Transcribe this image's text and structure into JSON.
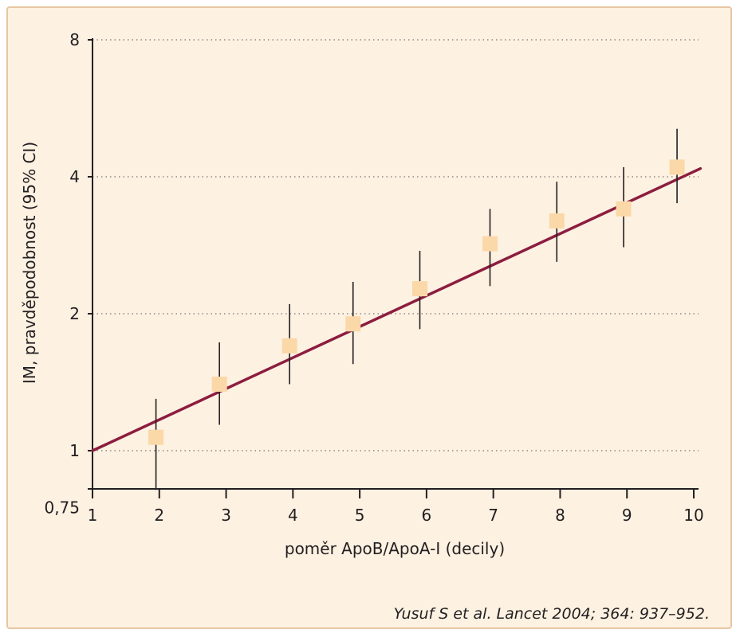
{
  "chart_data": {
    "type": "scatter",
    "xlabel": "poměr ApoB/ApoA-I (decily)",
    "ylabel": "IM, pravděpodobnost (95% CI)",
    "x_ticks": [
      "1",
      "2",
      "3",
      "4",
      "5",
      "6",
      "7",
      "8",
      "9",
      "10"
    ],
    "y_ticks": [
      {
        "value": 0.75,
        "label": "0,75"
      },
      {
        "value": 1,
        "label": "1"
      },
      {
        "value": 2,
        "label": "2"
      },
      {
        "value": 4,
        "label": "4"
      },
      {
        "value": 8,
        "label": "8"
      }
    ],
    "y_scale": "log2",
    "xlim": [
      1,
      10
    ],
    "ylim": [
      0.75,
      8
    ],
    "grid": "horizontal-dotted",
    "points": [
      {
        "x": 1.95,
        "y": 1.07,
        "low": 0.82,
        "high": 1.3
      },
      {
        "x": 2.9,
        "y": 1.4,
        "low": 1.14,
        "high": 1.73
      },
      {
        "x": 3.95,
        "y": 1.7,
        "low": 1.4,
        "high": 2.1
      },
      {
        "x": 4.9,
        "y": 1.9,
        "low": 1.55,
        "high": 2.35
      },
      {
        "x": 5.9,
        "y": 2.27,
        "low": 1.85,
        "high": 2.75
      },
      {
        "x": 6.95,
        "y": 2.85,
        "low": 2.3,
        "high": 3.4
      },
      {
        "x": 7.95,
        "y": 3.2,
        "low": 2.6,
        "high": 3.9
      },
      {
        "x": 8.95,
        "y": 3.4,
        "low": 2.8,
        "high": 4.2
      },
      {
        "x": 9.75,
        "y": 4.2,
        "low": 3.5,
        "high": 5.1
      }
    ],
    "trend_line": {
      "x": [
        1,
        10.1
      ],
      "y": [
        1.0,
        4.17
      ]
    },
    "colors": {
      "marker": "#fbd8a8",
      "trend": "#8c1d3f",
      "error_bar": "#231f20",
      "grid": "#555555",
      "background": "#fdf1e2"
    }
  },
  "source_text": "Yusuf S et al. Lancet 2004; 364: 937–952."
}
